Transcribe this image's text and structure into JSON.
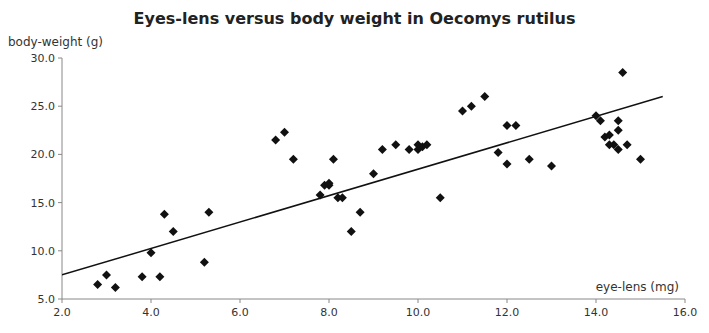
{
  "chart_data": {
    "type": "scatter",
    "title": "Eyes-lens versus body weight in Oecomys rutilus",
    "xlabel": "eye-lens (mg)",
    "ylabel": "body-weight (g)",
    "xlim": [
      2.0,
      16.0
    ],
    "ylim": [
      5.0,
      30.0
    ],
    "xticks": [
      {
        "value": 2.0,
        "label": "2.0"
      },
      {
        "value": 4.0,
        "label": "4.0"
      },
      {
        "value": 6.0,
        "label": "6.0"
      },
      {
        "value": 8.0,
        "label": "8.0"
      },
      {
        "value": 10.0,
        "label": "10.0"
      },
      {
        "value": 12.0,
        "label": "12.0"
      },
      {
        "value": 14.0,
        "label": "14.0"
      },
      {
        "value": 16.0,
        "label": "16.0"
      }
    ],
    "yticks": [
      {
        "value": 5.0,
        "label": "5.0"
      },
      {
        "value": 10.0,
        "label": "10.0"
      },
      {
        "value": 15.0,
        "label": "15.0"
      },
      {
        "value": 20.0,
        "label": "20.0"
      },
      {
        "value": 25.0,
        "label": "25.0"
      },
      {
        "value": 30.0,
        "label": "30.0"
      }
    ],
    "grid": false,
    "series": [
      {
        "type": "scatter",
        "marker": "diamond",
        "color": "#111111",
        "x": [
          2.8,
          3.0,
          3.2,
          3.8,
          4.0,
          4.2,
          4.3,
          4.5,
          5.2,
          5.3,
          6.8,
          7.0,
          7.2,
          7.8,
          7.9,
          8.0,
          8.0,
          8.1,
          8.2,
          8.3,
          8.5,
          8.7,
          9.0,
          9.2,
          9.5,
          9.8,
          10.0,
          10.0,
          10.1,
          10.2,
          10.5,
          11.0,
          11.2,
          11.5,
          11.8,
          12.0,
          12.0,
          12.2,
          12.5,
          13.0,
          14.0,
          14.1,
          14.2,
          14.3,
          14.3,
          14.4,
          14.5,
          14.5,
          14.5,
          14.6,
          14.7,
          15.0
        ],
        "values": [
          6.5,
          7.5,
          6.2,
          7.3,
          9.8,
          7.3,
          13.8,
          12.0,
          8.8,
          14.0,
          21.5,
          22.3,
          19.5,
          15.8,
          16.8,
          16.8,
          17.0,
          19.5,
          15.5,
          15.5,
          12.0,
          14.0,
          18.0,
          20.5,
          21.0,
          20.5,
          20.5,
          21.0,
          20.8,
          21.0,
          15.5,
          24.5,
          25.0,
          26.0,
          20.2,
          23.0,
          19.0,
          23.0,
          19.5,
          18.8,
          24.0,
          23.5,
          21.8,
          22.0,
          21.0,
          21.0,
          20.5,
          22.5,
          23.5,
          28.5,
          21.0,
          19.5
        ]
      },
      {
        "type": "line",
        "color": "#111111",
        "x": [
          2.0,
          15.5
        ],
        "values": [
          7.5,
          26.0
        ]
      }
    ]
  }
}
